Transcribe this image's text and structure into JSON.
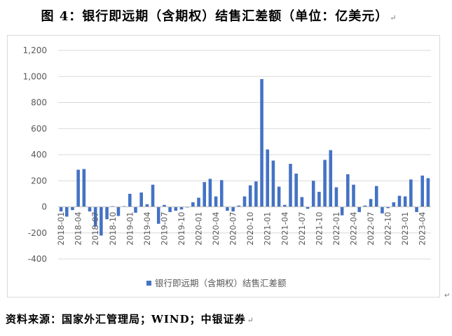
{
  "figure": {
    "title": "图 4：银行即远期（含期权）结售汇差额（单位：亿美元）",
    "title_end_mark": "↵",
    "source": "资料来源：国家外汇管理局；WIND；中银证券",
    "source_end_mark": "↵",
    "chart_end_mark": "↵"
  },
  "chart_data": {
    "type": "bar",
    "title": "",
    "xlabel": "",
    "ylabel": "",
    "ylim": [
      -400,
      1200
    ],
    "yticks": [
      -400,
      -200,
      0,
      200,
      400,
      600,
      800,
      1000,
      1200
    ],
    "ytick_labels": [
      "-400",
      "-200",
      "0",
      "200",
      "400",
      "600",
      "800",
      "1,000",
      "1,200"
    ],
    "xtick_labels": [
      "2018-01",
      "2018-04",
      "2018-07",
      "2018-10",
      "2019-01",
      "2019-04",
      "2019-07",
      "2019-10",
      "2020-01",
      "2020-04",
      "2020-07",
      "2020-10",
      "2021-01",
      "2021-04",
      "2021-07",
      "2021-10",
      "2022-01",
      "2022-04",
      "2022-07",
      "2022-10",
      "2023-01",
      "2023-04"
    ],
    "grid": true,
    "legend_position": "bottom",
    "bar_color": "#4472c4",
    "categories": [
      "2018-01",
      "2018-02",
      "2018-03",
      "2018-04",
      "2018-05",
      "2018-06",
      "2018-07",
      "2018-08",
      "2018-09",
      "2018-10",
      "2018-11",
      "2018-12",
      "2019-01",
      "2019-02",
      "2019-03",
      "2019-04",
      "2019-05",
      "2019-06",
      "2019-07",
      "2019-08",
      "2019-09",
      "2019-10",
      "2019-11",
      "2019-12",
      "2020-01",
      "2020-02",
      "2020-03",
      "2020-04",
      "2020-05",
      "2020-06",
      "2020-07",
      "2020-08",
      "2020-09",
      "2020-10",
      "2020-11",
      "2020-12",
      "2021-01",
      "2021-02",
      "2021-03",
      "2021-04",
      "2021-05",
      "2021-06",
      "2021-07",
      "2021-08",
      "2021-09",
      "2021-10",
      "2021-11",
      "2021-12",
      "2022-01",
      "2022-02",
      "2022-03",
      "2022-04",
      "2022-05",
      "2022-06",
      "2022-07",
      "2022-08",
      "2022-09",
      "2022-10",
      "2022-11",
      "2022-12",
      "2023-01",
      "2023-02",
      "2023-03",
      "2023-04",
      "2023-05"
    ],
    "series": [
      {
        "name": "银行即远期（含期权）结售汇差额",
        "values": [
          -35,
          -75,
          -25,
          285,
          290,
          -35,
          -150,
          -220,
          -95,
          5,
          -70,
          5,
          100,
          -45,
          110,
          20,
          170,
          -130,
          15,
          -40,
          -30,
          -20,
          -5,
          35,
          70,
          190,
          215,
          80,
          205,
          -30,
          -35,
          10,
          80,
          165,
          195,
          980,
          440,
          355,
          155,
          15,
          330,
          255,
          75,
          -15,
          200,
          115,
          360,
          435,
          150,
          -65,
          250,
          170,
          -40,
          10,
          60,
          160,
          -50,
          -10,
          35,
          85,
          80,
          210,
          -40,
          240,
          220
        ]
      }
    ]
  }
}
